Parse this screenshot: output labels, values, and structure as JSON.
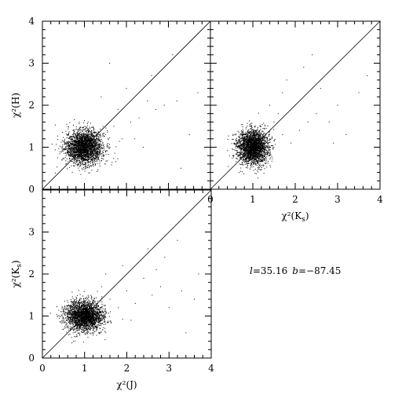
{
  "chart_data": [
    {
      "id": "top-left",
      "type": "scatter",
      "title": "",
      "xlabel": "",
      "ylabel": "χ²(H)",
      "xlim": [
        0,
        4
      ],
      "ylim": [
        0,
        4
      ],
      "x_ticks": [],
      "y_ticks": [
        "0",
        "1",
        "2",
        "3",
        "4"
      ],
      "diagonal": "y=x",
      "cluster": {
        "center": [
          1.0,
          1.0
        ],
        "spread": [
          0.22,
          0.2
        ],
        "n_points": 2600
      },
      "outliers": [
        [
          1.5,
          1.3
        ],
        [
          1.7,
          1.5
        ],
        [
          1.9,
          1.2
        ],
        [
          2.1,
          1.6
        ],
        [
          2.3,
          1.7
        ],
        [
          2.5,
          2.1
        ],
        [
          2.7,
          1.9
        ],
        [
          2.9,
          2.0
        ],
        [
          3.2,
          2.1
        ],
        [
          3.5,
          1.3
        ],
        [
          2.6,
          2.7
        ],
        [
          3.1,
          3.2
        ],
        [
          1.4,
          2.2
        ],
        [
          3.3,
          0.5
        ],
        [
          2.2,
          1.2
        ],
        [
          1.8,
          1.9
        ],
        [
          3.7,
          2.3
        ],
        [
          2.0,
          2.4
        ],
        [
          1.6,
          3.0
        ],
        [
          2.4,
          1.0
        ]
      ]
    },
    {
      "id": "top-right",
      "type": "scatter",
      "title": "",
      "xlabel": "χ²(K",
      "xlabel_sub": "s",
      "xlabel_close": ")",
      "ylabel": "",
      "xlim": [
        0,
        4
      ],
      "ylim": [
        0,
        4
      ],
      "x_ticks": [
        "0",
        "1",
        "2",
        "3",
        "4"
      ],
      "y_ticks": [],
      "diagonal": "y=x",
      "cluster": {
        "center": [
          1.0,
          1.0
        ],
        "spread": [
          0.18,
          0.2
        ],
        "n_points": 2600
      },
      "outliers": [
        [
          1.5,
          1.6
        ],
        [
          1.7,
          1.3
        ],
        [
          1.9,
          1.1
        ],
        [
          2.1,
          1.4
        ],
        [
          2.0,
          2.0
        ],
        [
          2.3,
          1.6
        ],
        [
          2.5,
          1.8
        ],
        [
          2.8,
          1.6
        ],
        [
          3.2,
          1.3
        ],
        [
          3.5,
          2.3
        ],
        [
          2.4,
          3.2
        ],
        [
          1.8,
          2.6
        ],
        [
          1.4,
          2.0
        ],
        [
          2.6,
          2.4
        ],
        [
          3.0,
          2.0
        ],
        [
          1.6,
          1.8
        ],
        [
          3.7,
          2.7
        ],
        [
          2.2,
          2.9
        ],
        [
          1.7,
          2.3
        ],
        [
          2.9,
          1.1
        ]
      ]
    },
    {
      "id": "bottom-left",
      "type": "scatter",
      "title": "",
      "xlabel": "χ²(J)",
      "ylabel": "χ²(K",
      "ylabel_sub": "s",
      "ylabel_close": ")",
      "xlim": [
        0,
        4
      ],
      "ylim": [
        0,
        4
      ],
      "x_ticks": [
        "0",
        "1",
        "2",
        "3",
        "4"
      ],
      "y_ticks": [
        "0",
        "1",
        "2",
        "3"
      ],
      "diagonal": "y=x",
      "cluster": {
        "center": [
          1.0,
          1.0
        ],
        "spread": [
          0.22,
          0.18
        ],
        "n_points": 2600
      },
      "outliers": [
        [
          1.6,
          1.4
        ],
        [
          1.8,
          1.2
        ],
        [
          2.0,
          1.6
        ],
        [
          2.2,
          1.3
        ],
        [
          2.4,
          1.9
        ],
        [
          2.6,
          1.5
        ],
        [
          2.8,
          1.7
        ],
        [
          3.0,
          1.2
        ],
        [
          3.3,
          1.6
        ],
        [
          3.6,
          1.4
        ],
        [
          2.5,
          2.6
        ],
        [
          1.5,
          2.0
        ],
        [
          1.9,
          2.2
        ],
        [
          3.4,
          0.6
        ],
        [
          2.1,
          0.9
        ],
        [
          2.7,
          2.1
        ],
        [
          3.7,
          2.0
        ],
        [
          1.4,
          1.7
        ],
        [
          2.9,
          2.4
        ],
        [
          3.2,
          2.8
        ]
      ]
    }
  ],
  "annotation": {
    "l_symbol": "l",
    "l_value": "=35.16",
    "b_symbol": "b",
    "b_value": "=−87.45"
  }
}
